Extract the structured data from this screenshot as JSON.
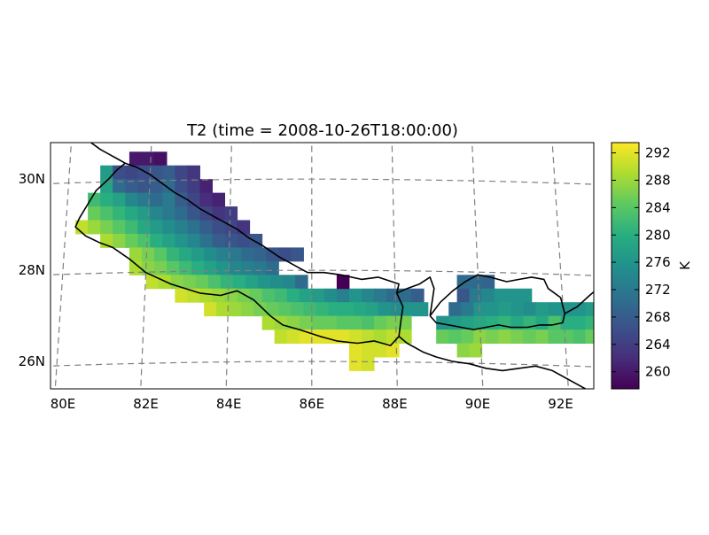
{
  "chart_data": {
    "type": "heatmap",
    "title": "T2 (time = 2008-10-26T18:00:00)",
    "x_ticks": [
      "80E",
      "82E",
      "84E",
      "86E",
      "88E",
      "90E",
      "92E"
    ],
    "y_ticks": [
      "30N",
      "28N",
      "26N"
    ],
    "colorbar": {
      "label": "K",
      "ticks": [
        "260",
        "264",
        "268",
        "272",
        "276",
        "280",
        "284",
        "288",
        "292"
      ],
      "range": [
        257.5,
        293.5
      ],
      "colormap": "viridis"
    },
    "grid_lines": "dashed",
    "lon_range": [
      79.7,
      92.8
    ],
    "lat_range": [
      25.4,
      30.8
    ],
    "regions": [
      {
        "name": "Nepal",
        "rows": [
          {
            "lat": 30.3,
            "lon_start": 81.6,
            "values": [
              260,
              260,
              259
            ]
          },
          {
            "lat": 30.0,
            "lon_start": 80.9,
            "values": [
              277,
              266,
              265,
              266,
              267,
              268,
              265,
              263
            ]
          },
          {
            "lat": 29.7,
            "lon_start": 80.9,
            "values": [
              278,
              270,
              268,
              267,
              268,
              270,
              266,
              264,
              261
            ]
          },
          {
            "lat": 29.4,
            "lon_start": 80.6,
            "values": [
              282,
              280,
              278,
              274,
              272,
              270,
              272,
              268,
              265,
              262,
              261
            ]
          },
          {
            "lat": 29.1,
            "lon_start": 80.6,
            "values": [
              285,
              283,
              281,
              279,
              277,
              274,
              272,
              270,
              267,
              265,
              263,
              264
            ]
          },
          {
            "lat": 28.8,
            "lon_start": 80.3,
            "values": [
              290,
              288,
              286,
              284,
              282,
              279,
              277,
              275,
              273,
              271,
              268,
              266,
              265,
              263
            ]
          },
          {
            "lat": 28.5,
            "lon_start": 80.9,
            "values": [
              289,
              287,
              285,
              283,
              280,
              278,
              276,
              274,
              271,
              268,
              267,
              266,
              267
            ]
          },
          {
            "lat": 28.2,
            "lon_start": 81.6,
            "values": [
              288,
              286,
              284,
              281,
              279,
              277,
              275,
              273,
              272,
              270,
              269,
              267,
              266,
              267
            ]
          },
          {
            "lat": 27.9,
            "lon_start": 81.6,
            "values": [
              289,
              287,
              286,
              284,
              282,
              280,
              278,
              276,
              274,
              273,
              272,
              270
            ]
          },
          {
            "lat": 27.6,
            "lon_start": 82.0,
            "values": [
              290,
              289,
              287,
              286,
              285,
              283,
              281,
              280,
              278,
              276,
              275,
              274,
              270
            ]
          },
          {
            "lat": 27.3,
            "lon_start": 82.7,
            "values": [
              291,
              290,
              289,
              288,
              287,
              286,
              285,
              283,
              282,
              280,
              278,
              277,
              275,
              273,
              276,
              274,
              272,
              270,
              270,
              268
            ]
          },
          {
            "lat": 27.0,
            "lon_start": 83.4,
            "values": [
              291,
              289,
              288,
              287,
              286,
              285,
              284,
              283,
              282,
              281,
              280,
              280,
              279,
              278,
              276,
              275,
              276,
              276
            ]
          },
          {
            "lat": 26.7,
            "lon_start": 84.8,
            "values": [
              289,
              288,
              287,
              286,
              285,
              285,
              284,
              284,
              283,
              285,
              286,
              286
            ]
          },
          {
            "lat": 26.4,
            "lon_start": 85.1,
            "values": [
              290,
              291,
              292,
              292,
              292,
              292,
              291,
              290,
              289,
              290,
              289
            ]
          },
          {
            "lat": 26.1,
            "lon_start": 86.9,
            "values": [
              292,
              291,
              291,
              292
            ]
          },
          {
            "lat": 25.8,
            "lon_start": 86.9,
            "values": [
              292,
              291
            ]
          }
        ],
        "extra_cells": [
          {
            "lat": 27.6,
            "lon": 86.6,
            "value": 257
          }
        ]
      },
      {
        "name": "Bhutan",
        "rows": [
          {
            "lat": 27.6,
            "lon_start": 89.5,
            "values": [
              270,
              270,
              269
            ]
          },
          {
            "lat": 27.3,
            "lon_start": 89.5,
            "values": [
              267,
              272,
              274,
              276,
              276,
              276
            ]
          },
          {
            "lat": 27.0,
            "lon_start": 89.3,
            "values": [
              270,
              272,
              276,
              276,
              277,
              276,
              275,
              277,
              276,
              276,
              276,
              277
            ]
          },
          {
            "lat": 26.7,
            "lon_start": 89.0,
            "values": [
              276,
              277,
              278,
              279,
              280,
              281,
              279,
              281,
              279,
              283,
              280,
              280,
              281,
              280,
              282,
              283
            ]
          },
          {
            "lat": 26.4,
            "lon_start": 89.0,
            "values": [
              285,
              284,
              285,
              287,
              286,
              287,
              286,
              285,
              286,
              284,
              284,
              283,
              285,
              286,
              287,
              285
            ]
          },
          {
            "lat": 26.1,
            "lon_start": 89.5,
            "values": [
              287,
              288
            ]
          }
        ],
        "extra_cells": []
      }
    ]
  }
}
